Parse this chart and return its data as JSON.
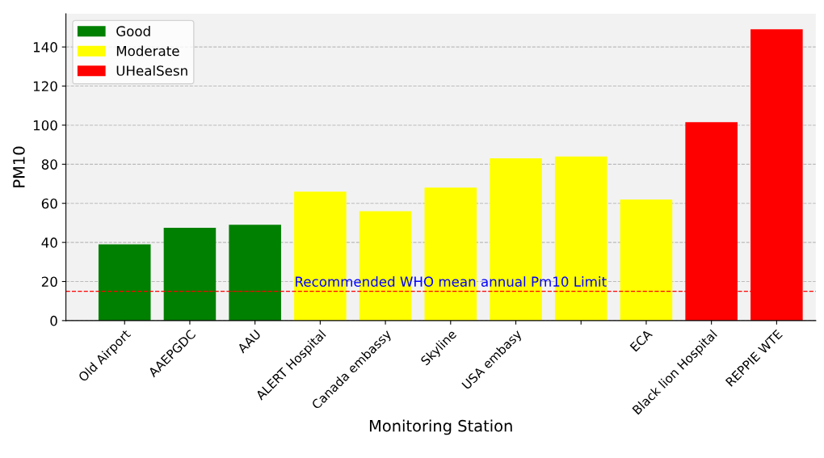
{
  "chart_data": {
    "type": "bar",
    "xlabel": "Monitoring Station",
    "ylabel": "PM10",
    "categories": [
      "Old Airport",
      "AAEPGDC",
      "AAU",
      "ALERT Hospital",
      "Canada embassy",
      "Skyline",
      "USA embasy",
      null,
      "ECA",
      "Black lion Hospital",
      "REPPIE WTE"
    ],
    "series": [
      {
        "name": "Good",
        "color": "#008000",
        "values": [
          39,
          47.5,
          49,
          null,
          null,
          null,
          null,
          null,
          null,
          null,
          null
        ]
      },
      {
        "name": "Moderate",
        "color": "#ffff00",
        "values": [
          null,
          null,
          null,
          66,
          56,
          68,
          83,
          84,
          62,
          null,
          null
        ]
      },
      {
        "name": "UHealSesn",
        "color": "#ff0000",
        "values": [
          null,
          null,
          null,
          null,
          null,
          null,
          null,
          null,
          null,
          101.5,
          149
        ]
      }
    ],
    "ylim": [
      0,
      157
    ],
    "yticks": [
      0,
      20,
      40,
      60,
      80,
      100,
      120,
      140
    ],
    "grid": "y",
    "legend": "top left",
    "ref_lines": [
      {
        "axis": "y",
        "value": 15,
        "label": "Recommended WHO mean annual Pm10 Limit",
        "color": "#ff0000",
        "line_style": "dashed"
      }
    ]
  }
}
